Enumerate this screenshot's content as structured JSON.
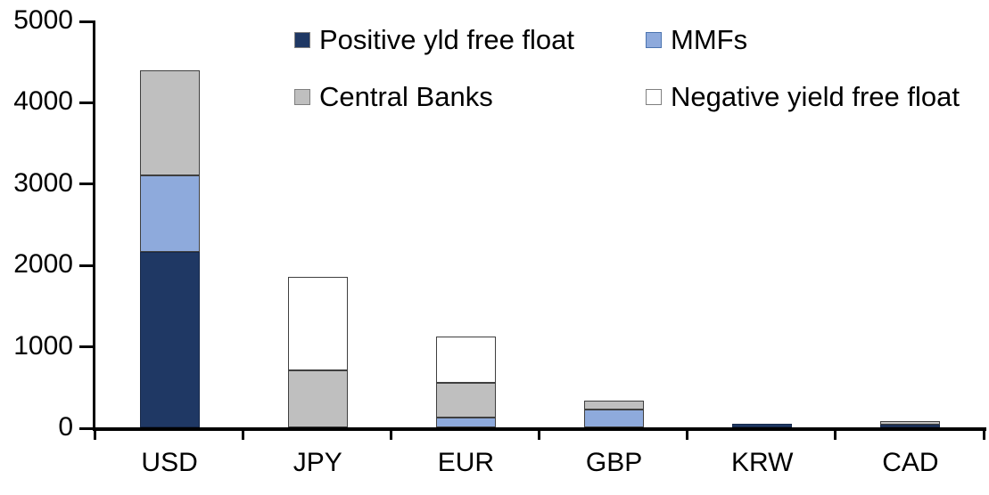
{
  "chart_data": {
    "type": "bar",
    "subtype": "stacked",
    "title": "",
    "xlabel": "",
    "ylabel": "",
    "categories": [
      "USD",
      "JPY",
      "EUR",
      "GBP",
      "KRW",
      "CAD"
    ],
    "series": [
      {
        "name": "Positive yld free float",
        "color": "#1F3864",
        "border_color": "#17294A",
        "swatch_border": "#7F7F7F",
        "values": [
          2150,
          0,
          0,
          0,
          45,
          35
        ]
      },
      {
        "name": "MMFs",
        "color": "#8EAADC",
        "border_color": "#3F3F3F",
        "swatch_border": "#4C74B0",
        "values": [
          950,
          0,
          120,
          215,
          0,
          0
        ]
      },
      {
        "name": "Central Banks",
        "color": "#BFBFBF",
        "border_color": "#3F3F3F",
        "swatch_border": "#7F7F7F",
        "values": [
          1290,
          700,
          425,
          115,
          0,
          40
        ]
      },
      {
        "name": "Negative yield free float",
        "color": "#FFFFFF",
        "border_color": "#3F3F3F",
        "swatch_border": "#7F7F7F",
        "values": [
          0,
          1150,
          570,
          0,
          0,
          0
        ]
      }
    ],
    "totals": [
      4390,
      1850,
      1115,
      330,
      45,
      75
    ],
    "ylim": [
      0,
      5000
    ],
    "yticks": [
      0,
      1000,
      2000,
      3000,
      4000,
      5000
    ],
    "grid": false,
    "legend_position": "top",
    "axis_color": "#000000",
    "text_color": "#000000"
  }
}
